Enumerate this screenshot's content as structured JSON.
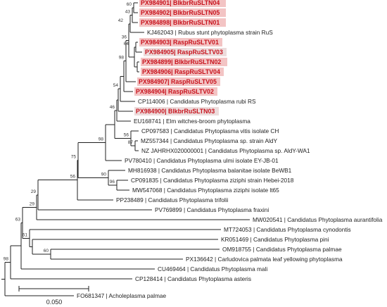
{
  "tree": {
    "scale_bar": {
      "label": "0.050"
    },
    "leaves": [
      {
        "label": "PX984901| BlkbrRuSLTN04",
        "highlight": "strong"
      },
      {
        "label": "PX984902| BlkbrRuSLTN05",
        "highlight": "strong"
      },
      {
        "label": "PX984898| BlkbrRuSLTN01",
        "highlight": "strong"
      },
      {
        "label": "KJ462043 | Rubus stunt phytoplasma strain RuS",
        "highlight": "none"
      },
      {
        "label": "PX984903| RaspRuSLTV01",
        "highlight": "strong"
      },
      {
        "label": "PX984905| RaspRuSLTV03",
        "highlight": "light"
      },
      {
        "label": "PX984899| BlkbrRuSLTN02",
        "highlight": "strong"
      },
      {
        "label": "PX984906| RaspRuSLTV04",
        "highlight": "strong"
      },
      {
        "label": "PX984907| RaspRuSLTV05",
        "highlight": "strong"
      },
      {
        "label": "PX984904| RaspRuSLTV02",
        "highlight": "strong"
      },
      {
        "label": "CP114006 | Candidatus Phytoplasma rubi RS",
        "highlight": "none"
      },
      {
        "label": "PX984900| BlkbrRuSLTN03",
        "highlight": "light"
      },
      {
        "label": "EU168741 | Elm witches-broom phytoplasma",
        "highlight": "none"
      },
      {
        "label": "CP097583 | Candidatus Phytoplasma vitis isolate CH",
        "highlight": "none"
      },
      {
        "label": "MZ557344 | Candidatus Phytoplasma sp. strain AldY",
        "highlight": "none"
      },
      {
        "label": "NZ JAHRHX020000001 | Candidatus Phytoplasma sp. AldY-WA1",
        "highlight": "none"
      },
      {
        "label": "PV780410 | Candidatus Phytoplasma ulmi isolate EY-JB-01",
        "highlight": "none"
      },
      {
        "label": "MH816938 | Candidatus Phytoplasma balanitae isolate BeWB1",
        "highlight": "none"
      },
      {
        "label": "CP091835 | Candidatus Phytoplasma ziziphi strain Hebei-2018",
        "highlight": "none"
      },
      {
        "label": "MW547068 | Candidatus Phytoplasma ziziphi isolate lt65",
        "highlight": "none"
      },
      {
        "label": "PP238489 | Candidatus Phytoplasma trifolii",
        "highlight": "none"
      },
      {
        "label": "PV769899 | Candidatus Phytoplasma fraxini",
        "highlight": "none"
      },
      {
        "label": "MW020541 | Candidatus Phytoplasma aurantifolia",
        "highlight": "none"
      },
      {
        "label": "MT724053 | Candidatus Phytoplasma cynodontis",
        "highlight": "none"
      },
      {
        "label": "KR051469 | Candidatus Phytoplasma pini",
        "highlight": "none"
      },
      {
        "label": "OM918755 | Candidatus Phytoplasma palmae",
        "highlight": "none"
      },
      {
        "label": "PX136642 | Carludovica palmata leaf yellowing phytoplasma",
        "highlight": "none"
      },
      {
        "label": "CU469464 | Candidatus Phytoplasma mali",
        "highlight": "none"
      },
      {
        "label": "CP128414 | Candidatus Phytoplasma asteris",
        "highlight": "none"
      },
      {
        "label": "FO681347 | Acholeplasma palmae",
        "highlight": "none"
      }
    ],
    "support_values": [
      "60",
      "43",
      "64",
      "42",
      "36",
      "98",
      "54",
      "46",
      "56",
      "87",
      "98",
      "90",
      "96",
      "75",
      "56",
      "29",
      "29",
      "63",
      "61",
      "60",
      "98"
    ]
  }
}
